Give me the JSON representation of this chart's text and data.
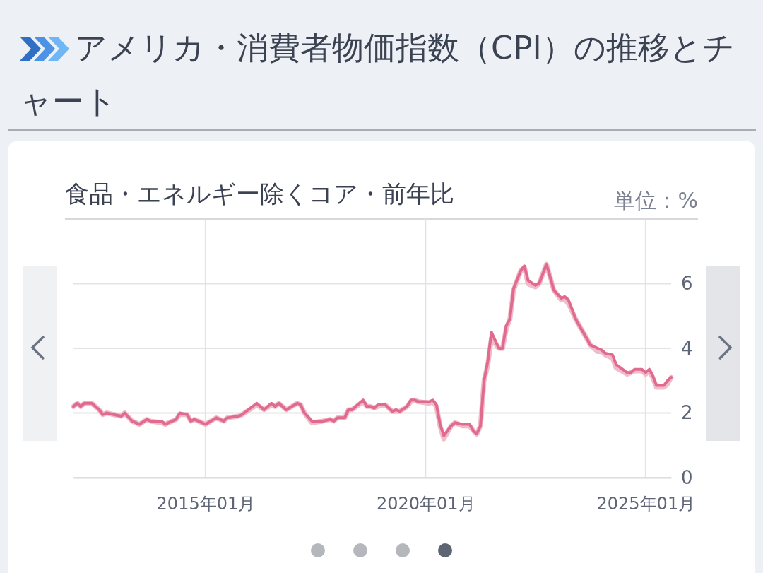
{
  "chart_data": {
    "type": "line",
    "title": "アメリカ・消費者物価指数（CPI）の推移とチャート",
    "subtitle": "食品・エネルギー除くコア・前年比",
    "ylabel": "単位：%",
    "x": [
      "2012-01",
      "2012-02",
      "2012-03",
      "2012-04",
      "2012-06",
      "2012-07",
      "2012-08",
      "2012-09",
      "2012-10",
      "2012-12",
      "2013-02",
      "2013-03",
      "2013-05",
      "2013-07",
      "2013-09",
      "2013-10",
      "2014-01",
      "2014-02",
      "2014-03",
      "2014-05",
      "2014-06",
      "2014-08",
      "2014-09",
      "2014-10",
      "2015-01",
      "2015-04",
      "2015-06",
      "2015-07",
      "2015-10",
      "2015-11",
      "2016-03",
      "2016-05",
      "2016-07",
      "2016-08",
      "2016-09",
      "2016-11",
      "2017-02",
      "2017-03",
      "2017-04",
      "2017-06",
      "2017-09",
      "2017-11",
      "2017-12",
      "2018-01",
      "2018-03",
      "2018-04",
      "2018-05",
      "2018-08",
      "2018-09",
      "2018-10",
      "2018-11",
      "2018-12",
      "2019-02",
      "2019-04",
      "2019-05",
      "2019-06",
      "2019-08",
      "2019-09",
      "2019-10",
      "2019-11",
      "2020-02",
      "2020-03",
      "2020-04",
      "2020-05",
      "2020-06",
      "2020-08",
      "2020-09",
      "2020-11",
      "2021-01",
      "2021-02",
      "2021-03",
      "2021-04",
      "2021-05",
      "2021-06",
      "2021-07",
      "2021-09",
      "2021-10",
      "2021-11",
      "2021-12",
      "2022-01",
      "2022-03",
      "2022-04",
      "2022-05",
      "2022-07",
      "2022-08",
      "2022-10",
      "2022-11",
      "2022-12",
      "2023-02",
      "2023-03",
      "2023-04",
      "2023-06",
      "2023-07",
      "2023-09",
      "2023-10",
      "2023-12",
      "2024-01",
      "2024-02",
      "2024-04",
      "2024-05",
      "2024-08",
      "2024-09",
      "2024-10",
      "2024-12",
      "2025-01",
      "2025-02",
      "2025-03",
      "2025-04",
      "2025-06",
      "2025-07",
      "2025-08"
    ],
    "series": [
      {
        "color": "#f0bccb",
        "values": [
          2.2,
          2.3,
          2.2,
          2.3,
          2.3,
          2.2,
          2.1,
          1.95,
          2.0,
          1.95,
          1.9,
          2.0,
          1.75,
          1.65,
          1.8,
          1.75,
          1.7,
          1.65,
          1.7,
          1.8,
          1.95,
          1.95,
          1.75,
          1.8,
          1.65,
          1.85,
          1.75,
          1.85,
          1.9,
          1.95,
          2.25,
          2.1,
          2.25,
          2.2,
          2.3,
          2.1,
          2.3,
          2.25,
          2.0,
          1.7,
          1.75,
          1.8,
          1.75,
          1.85,
          1.85,
          2.1,
          2.1,
          2.35,
          2.2,
          2.2,
          2.15,
          2.2,
          2.25,
          2.05,
          2.05,
          2.05,
          2.2,
          2.35,
          2.4,
          2.35,
          2.3,
          2.35,
          2.2,
          1.6,
          1.2,
          1.6,
          1.7,
          1.6,
          1.6,
          1.45,
          1.35,
          1.6,
          3.0,
          3.5,
          4.3,
          4.0,
          4.0,
          4.6,
          4.9,
          5.8,
          6.4,
          6.5,
          6.0,
          5.9,
          6.0,
          6.6,
          6.2,
          5.8,
          5.5,
          5.5,
          5.4,
          4.9,
          4.7,
          4.3,
          4.1,
          3.9,
          3.9,
          3.8,
          3.7,
          3.4,
          3.2,
          3.25,
          3.3,
          3.3,
          3.2,
          3.3,
          3.1,
          2.8,
          2.8,
          2.9,
          3.1
        ]
      },
      {
        "color": "#e06b8f",
        "values": [
          2.2,
          2.3,
          2.2,
          2.3,
          2.3,
          2.2,
          2.1,
          1.95,
          2.0,
          1.95,
          1.9,
          2.0,
          1.75,
          1.65,
          1.8,
          1.75,
          1.75,
          1.65,
          1.7,
          1.8,
          2.0,
          1.95,
          1.75,
          1.8,
          1.65,
          1.85,
          1.75,
          1.85,
          1.9,
          1.95,
          2.3,
          2.1,
          2.3,
          2.2,
          2.3,
          2.1,
          2.3,
          2.25,
          2.0,
          1.75,
          1.75,
          1.8,
          1.75,
          1.85,
          1.85,
          2.1,
          2.1,
          2.4,
          2.2,
          2.2,
          2.15,
          2.25,
          2.25,
          2.05,
          2.1,
          2.05,
          2.2,
          2.4,
          2.4,
          2.35,
          2.35,
          2.4,
          2.25,
          1.65,
          1.3,
          1.6,
          1.7,
          1.65,
          1.65,
          1.45,
          1.35,
          1.6,
          3.0,
          3.6,
          4.5,
          4.0,
          4.0,
          4.7,
          4.9,
          5.85,
          6.4,
          6.55,
          6.1,
          5.95,
          6.0,
          6.6,
          6.2,
          5.8,
          5.55,
          5.6,
          5.5,
          4.9,
          4.7,
          4.3,
          4.1,
          4.0,
          3.95,
          3.85,
          3.8,
          3.5,
          3.25,
          3.25,
          3.35,
          3.35,
          3.25,
          3.35,
          3.15,
          2.85,
          2.85,
          3.0,
          3.1
        ]
      }
    ],
    "xlim": [
      "2012-01",
      "2025-08"
    ],
    "xticks": [
      {
        "value": "2015-01",
        "label": "2015年01月"
      },
      {
        "value": "2020-01",
        "label": "2020年01月"
      },
      {
        "value": "2025-01",
        "label": "2025年01月"
      }
    ],
    "ylim": [
      0,
      8
    ],
    "yticks": [
      0,
      2,
      4,
      6
    ],
    "grid": true
  }
}
